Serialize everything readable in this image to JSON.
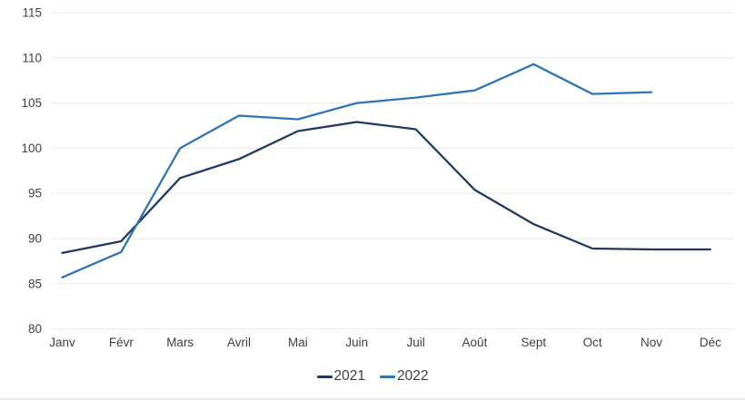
{
  "chart_data": {
    "type": "line",
    "title": "",
    "xlabel": "",
    "ylabel": "",
    "categories": [
      "Janv",
      "Févr",
      "Mars",
      "Avril",
      "Mai",
      "Juin",
      "Juil",
      "Août",
      "Sept",
      "Oct",
      "Nov",
      "Déc"
    ],
    "series": [
      {
        "name": "2021",
        "color": "#203864",
        "values": [
          88.4,
          89.7,
          96.7,
          98.8,
          101.9,
          102.9,
          102.1,
          95.4,
          91.6,
          88.9,
          88.8,
          88.8
        ]
      },
      {
        "name": "2022",
        "color": "#2e75b6",
        "values": [
          85.7,
          88.5,
          100.0,
          103.6,
          103.2,
          105.0,
          105.6,
          106.4,
          109.3,
          106.0,
          106.2,
          null
        ]
      }
    ],
    "ylim": [
      80,
      115
    ],
    "yticks": [
      80,
      85,
      90,
      95,
      100,
      105,
      110,
      115
    ],
    "grid": true,
    "gridline_color": "#e9e9e9",
    "tick_label_color": "#404040",
    "legend_position": "bottom-center"
  }
}
